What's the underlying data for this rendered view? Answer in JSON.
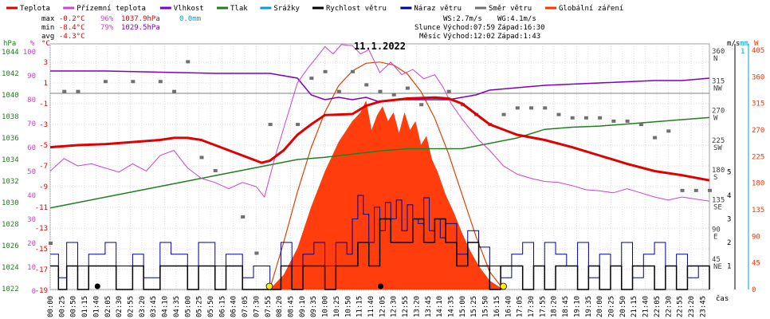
{
  "colors": {
    "temperature": "#e00000",
    "feels_like": "#d040d0",
    "humidity": "#8000c0",
    "pressure": "#208020",
    "precip": "#00a0d0",
    "wind_speed": "#000000",
    "gust": "#000090",
    "wind_dir": "#707070",
    "radiation": "#ff3300"
  },
  "legend": [
    {
      "key": "temperature",
      "label": "Teplota"
    },
    {
      "key": "feels_like",
      "label": "Přízemní teplota"
    },
    {
      "key": "humidity",
      "label": "Vlhkost"
    },
    {
      "key": "pressure",
      "label": "Tlak"
    },
    {
      "key": "precip",
      "label": "Srážky"
    },
    {
      "key": "wind_speed",
      "label": "Rychlost větru"
    },
    {
      "key": "gust",
      "label": "Náraz větru"
    },
    {
      "key": "wind_dir",
      "label": "Směr větru"
    },
    {
      "key": "radiation",
      "label": "Globální záření"
    }
  ],
  "stats": {
    "max": {
      "label": "max",
      "temp": "-0.2°C",
      "hum": "96%",
      "press": "1037.9hPa",
      "precip": "0.0mm"
    },
    "min": {
      "label": "min",
      "temp": "-8.4°C",
      "hum": "79%",
      "press": "1029.5hPa"
    },
    "avg": {
      "label": "avg",
      "temp": "-4.3°C"
    }
  },
  "wind_info": {
    "ws": "WS:2.7m/s",
    "wg": "WG:4.1m/s"
  },
  "sun_info": {
    "label": "Slunce",
    "rise": "Východ:07:59",
    "set": "Západ:16:30"
  },
  "moon_info": {
    "label": "Měsíc",
    "rise": "Východ:12:02",
    "set": "Západ:1:43"
  },
  "chart_data": {
    "type": "line",
    "title": "11.1.2022",
    "x_unit": "čas",
    "x_ticks": [
      "00:00",
      "00:25",
      "00:50",
      "01:15",
      "01:40",
      "02:05",
      "02:30",
      "02:55",
      "03:20",
      "03:45",
      "04:10",
      "04:35",
      "05:00",
      "05:25",
      "05:50",
      "06:15",
      "06:40",
      "07:05",
      "07:30",
      "07:55",
      "08:20",
      "08:45",
      "09:10",
      "09:35",
      "10:00",
      "10:25",
      "10:50",
      "11:15",
      "11:40",
      "12:05",
      "12:30",
      "12:55",
      "13:20",
      "13:45",
      "14:10",
      "14:35",
      "15:00",
      "15:25",
      "15:50",
      "16:15",
      "16:40",
      "17:05",
      "17:30",
      "17:55",
      "18:20",
      "18:45",
      "19:10",
      "19:35",
      "20:00",
      "20:25",
      "20:50",
      "21:15",
      "21:40",
      "22:05",
      "22:30",
      "22:55",
      "23:20",
      "23:45"
    ],
    "axes": {
      "pressure": {
        "unit": "hPa",
        "ticks": [
          "1044",
          "1042",
          "1040",
          "1038",
          "1036",
          "1034",
          "1032",
          "1030",
          "1028",
          "1026",
          "1024",
          "1022"
        ]
      },
      "humidity": {
        "unit": "%",
        "ticks": [
          "100",
          "90",
          "80",
          "70",
          "60",
          "50",
          "40",
          "30",
          "20",
          "10",
          "0"
        ]
      },
      "temperature": {
        "unit": "°C",
        "ticks": [
          "3",
          "1",
          "-1",
          "-3",
          "-5",
          "-7",
          "-9",
          "-11",
          "-13",
          "-15",
          "-17",
          "-19"
        ]
      },
      "wind_dir": {
        "ticks": [
          [
            "360",
            "N"
          ],
          [
            "315",
            "NW"
          ],
          [
            "270",
            "W"
          ],
          [
            "225",
            "SW"
          ],
          [
            "180",
            "S"
          ],
          [
            "135",
            "SE"
          ],
          [
            "90",
            "E"
          ],
          [
            "45",
            "NE"
          ],
          [
            "",
            ""
          ]
        ]
      },
      "wind_speed": {
        "unit": "m/s",
        "ticks": [
          "5",
          "4",
          "3",
          "2",
          "1"
        ]
      },
      "precip": {
        "unit": "mm",
        "ticks": [
          "1"
        ]
      },
      "radiation": {
        "unit": "W",
        "ticks": [
          "405",
          "360",
          "315",
          "270",
          "225",
          "180",
          "135",
          "90",
          "45",
          "0"
        ]
      }
    },
    "series": {
      "temperature": {
        "x": [
          0,
          1,
          2,
          3,
          4,
          4.5,
          5,
          5.5,
          6,
          7,
          7.7,
          8,
          8.5,
          9,
          9.5,
          10,
          11,
          11.5,
          12,
          13,
          14,
          14.5,
          15,
          15.5,
          16,
          17,
          18,
          19,
          20,
          21,
          22,
          23,
          24
        ],
        "y": [
          -5.2,
          -5.0,
          -4.9,
          -4.7,
          -4.5,
          -4.3,
          -4.3,
          -4.5,
          -5.0,
          -6.0,
          -6.7,
          -6.5,
          -5.5,
          -4.0,
          -3.0,
          -2.1,
          -2.0,
          -1.2,
          -0.8,
          -0.5,
          -0.4,
          -0.5,
          -1.0,
          -2.0,
          -3.0,
          -4.0,
          -4.5,
          -5.2,
          -6.0,
          -6.8,
          -7.5,
          -7.9,
          -8.4
        ]
      },
      "feels_like": {
        "x": [
          0,
          0.5,
          1,
          1.5,
          2,
          2.5,
          3,
          3.5,
          4,
          4.5,
          5,
          5.5,
          6,
          6.5,
          7,
          7.5,
          7.8,
          8.2,
          8.6,
          9,
          9.4,
          9.8,
          10,
          10.3,
          10.6,
          11,
          11.3,
          11.6,
          12,
          12.4,
          12.8,
          13.2,
          13.6,
          14,
          14.3,
          14.6,
          15,
          15.3,
          15.6,
          16,
          16.5,
          17,
          17.5,
          18,
          18.5,
          19,
          19.5,
          20,
          20.5,
          21,
          21.5,
          22,
          22.5,
          23,
          23.5,
          24
        ],
        "y": [
          -7.5,
          -6.3,
          -7.0,
          -6.8,
          -7.2,
          -7.6,
          -6.8,
          -7.5,
          -6.0,
          -5.5,
          -7.2,
          -8.2,
          -8.6,
          -9.2,
          -8.6,
          -9.0,
          -10.0,
          -6.0,
          -2.5,
          1.0,
          2.5,
          3.8,
          4.5,
          3.8,
          4.7,
          4.6,
          3.8,
          4.2,
          2.0,
          3.0,
          1.8,
          2.3,
          1.4,
          1.8,
          0.6,
          -1.0,
          -2.5,
          -3.5,
          -4.5,
          -5.5,
          -7.0,
          -7.8,
          -8.2,
          -8.5,
          -8.6,
          -8.9,
          -9.3,
          -9.4,
          -9.6,
          -9.2,
          -9.6,
          -10.0,
          -10.3,
          -10.0,
          -10.2,
          -10.4
        ]
      },
      "humidity": {
        "x": [
          0,
          2,
          4,
          6,
          8,
          9,
          9.5,
          10,
          10.5,
          11,
          11.5,
          12,
          12.5,
          13,
          13.5,
          14,
          14.5,
          15,
          15.5,
          16,
          17,
          18,
          19,
          20,
          21,
          22,
          23,
          24
        ],
        "y": [
          92,
          92,
          91.5,
          91,
          91,
          89,
          82,
          80,
          81,
          80,
          81,
          79,
          80,
          80,
          80,
          80,
          80,
          81,
          82,
          84,
          85,
          86,
          86.5,
          87,
          87.5,
          88,
          88,
          89
        ]
      },
      "pressure": {
        "x": [
          0,
          1,
          2,
          3,
          4,
          5,
          6,
          7,
          8,
          9,
          10,
          11,
          12,
          13,
          14,
          15,
          16,
          17,
          18,
          19,
          20,
          21,
          22,
          23,
          24
        ],
        "y": [
          1029.5,
          1030.0,
          1030.5,
          1031.0,
          1031.5,
          1032.0,
          1032.5,
          1033.0,
          1033.5,
          1034.0,
          1034.2,
          1034.5,
          1034.8,
          1035.0,
          1035.0,
          1035.0,
          1035.5,
          1036.0,
          1036.8,
          1037.0,
          1037.1,
          1037.3,
          1037.5,
          1037.7,
          1037.9
        ]
      },
      "wind_speed": {
        "x": [
          0,
          0.3,
          0.6,
          1,
          1.4,
          2,
          2.4,
          3,
          3.4,
          4,
          4.4,
          5,
          5.4,
          6,
          6.4,
          7,
          7.4,
          8,
          8.4,
          8.8,
          9.2,
          9.6,
          10,
          10.4,
          10.8,
          11.2,
          11.6,
          12,
          12.4,
          12.8,
          13.2,
          13.6,
          14,
          14.4,
          14.8,
          15.2,
          15.6,
          16,
          16.4,
          16.8,
          17.2,
          17.6,
          18,
          18.4,
          18.8,
          19.2,
          19.6,
          20,
          20.4,
          20.8,
          21.2,
          21.6,
          22,
          22.4,
          22.8,
          23.2,
          23.6,
          24
        ],
        "y": [
          1,
          0,
          1,
          0,
          1,
          1,
          0,
          1,
          0,
          1,
          1,
          0,
          1,
          0,
          1,
          0,
          0,
          0,
          1,
          0,
          1,
          1,
          0,
          1,
          1,
          2,
          1,
          3,
          2,
          2,
          3,
          2,
          3,
          2,
          1,
          2,
          1,
          0,
          1,
          1,
          0,
          1,
          0,
          1,
          1,
          0,
          1,
          0,
          1,
          0,
          1,
          1,
          0,
          1,
          0,
          1,
          1,
          0
        ]
      },
      "gust": {
        "x": [
          0,
          0.3,
          0.6,
          1,
          1.4,
          2,
          2.4,
          3,
          3.4,
          4,
          4.4,
          5,
          5.4,
          6,
          6.4,
          7,
          7.4,
          8,
          8.4,
          8.8,
          9.2,
          9.6,
          10,
          10.4,
          10.8,
          11,
          11.2,
          11.4,
          11.6,
          11.8,
          12,
          12.2,
          12.4,
          12.6,
          12.8,
          13,
          13.2,
          13.4,
          13.6,
          13.8,
          14,
          14.2,
          14.4,
          14.8,
          15.2,
          15.6,
          16,
          16.4,
          16.8,
          17.2,
          17.6,
          18,
          18.4,
          18.8,
          19.2,
          19.6,
          20,
          20.4,
          20.8,
          21.2,
          21.6,
          22,
          22.4,
          22.8,
          23.2,
          23.6,
          24
        ],
        "y": [
          1.5,
          0.5,
          2,
          1,
          1.5,
          2,
          1,
          1.5,
          0.5,
          2,
          1.5,
          1,
          2,
          1,
          1.5,
          0.5,
          1,
          0,
          2,
          1,
          1.5,
          2,
          1,
          2,
          1.5,
          3,
          4,
          3.2,
          2,
          3.5,
          2.5,
          3.7,
          3,
          3.8,
          2.5,
          3.6,
          3,
          2.8,
          3.9,
          2.5,
          3,
          2.2,
          2.8,
          1.5,
          2.5,
          1.8,
          1,
          0.5,
          1.5,
          2,
          1,
          2,
          1.5,
          1,
          2,
          0.5,
          1.5,
          1,
          2,
          0.5,
          1.5,
          2,
          1,
          1.5,
          0.5,
          1,
          0.5
        ]
      },
      "wind_dir": {
        "x": [
          0,
          0.5,
          1,
          2,
          3,
          4,
          4.5,
          5,
          5.5,
          6,
          7,
          7.5,
          8,
          9,
          9.5,
          10,
          10.5,
          11,
          11.5,
          12,
          12.5,
          13,
          13.5,
          14,
          14.5,
          15,
          15.5,
          16,
          16.5,
          17,
          17.5,
          18,
          18.5,
          19,
          19.5,
          20,
          20.5,
          21,
          21.5,
          22,
          22.5,
          23,
          23.5,
          24
        ],
        "y": [
          70,
          300,
          300,
          315,
          315,
          315,
          300,
          345,
          200,
          180,
          110,
          55,
          250,
          250,
          320,
          330,
          300,
          330,
          310,
          300,
          295,
          305,
          280,
          290,
          300,
          280,
          265,
          250,
          265,
          275,
          275,
          275,
          265,
          260,
          260,
          260,
          255,
          255,
          250,
          230,
          240,
          150,
          150,
          150
        ]
      },
      "radiation": {
        "x": [
          7.99,
          8.5,
          9,
          9.5,
          10,
          10.5,
          11,
          11.3,
          11.5,
          11.7,
          11.9,
          12.1,
          12.3,
          12.5,
          12.7,
          12.9,
          13.1,
          13.3,
          13.5,
          13.7,
          13.9,
          14.1,
          14.4,
          14.7,
          15,
          15.3,
          15.6,
          16,
          16.5
        ],
        "y": [
          0,
          25,
          70,
          140,
          200,
          250,
          285,
          300,
          320,
          270,
          295,
          310,
          285,
          300,
          265,
          300,
          270,
          285,
          245,
          260,
          220,
          200,
          160,
          130,
          95,
          65,
          40,
          15,
          0
        ]
      },
      "clear_sky_radiation": {
        "x": [
          7.99,
          8.5,
          9,
          9.5,
          10,
          10.5,
          11,
          11.5,
          12,
          12.5,
          13,
          13.5,
          14,
          14.5,
          15,
          15.5,
          16,
          16.5
        ],
        "y": [
          0,
          80,
          165,
          240,
          300,
          345,
          370,
          383,
          385,
          380,
          365,
          335,
          290,
          230,
          160,
          90,
          30,
          0
        ]
      }
    },
    "markers": {
      "sun_rise": 7.98,
      "sun_set": 16.5,
      "moon_rise": 12.03,
      "moon_set": 1.72
    }
  }
}
